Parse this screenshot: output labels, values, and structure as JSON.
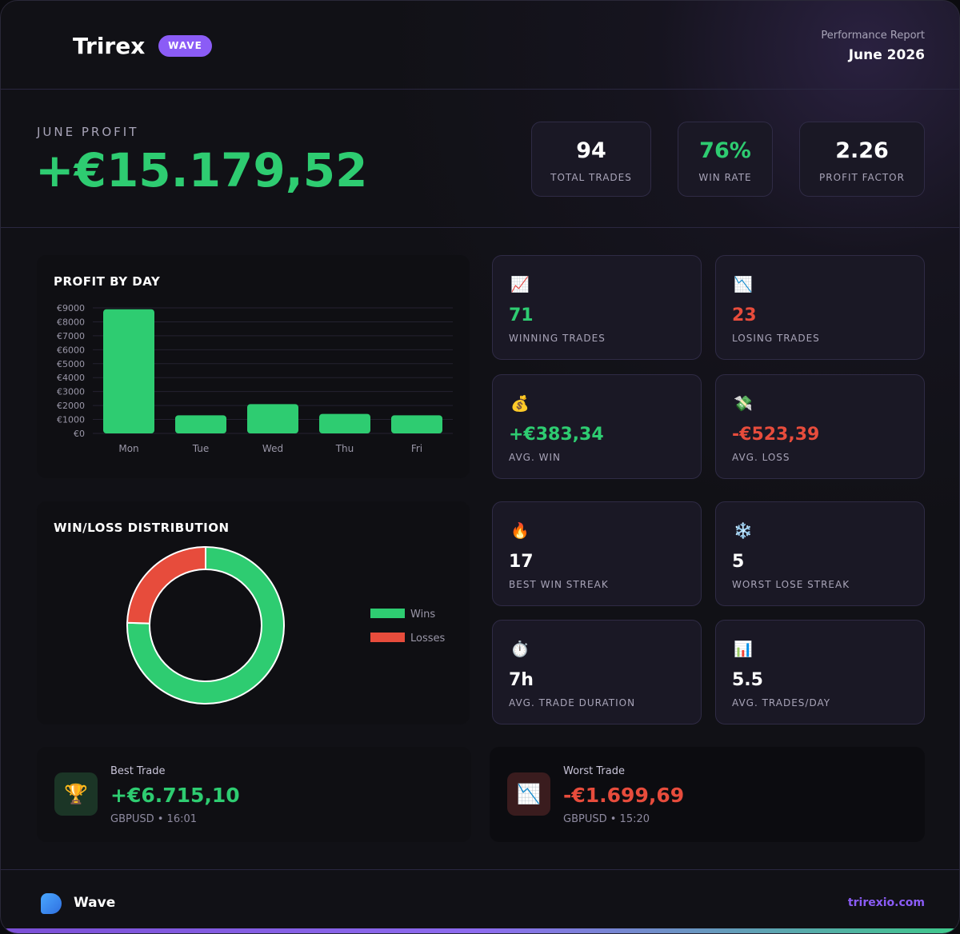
{
  "header": {
    "brand": "Trirex",
    "badge": "WAVE",
    "report_label": "Performance Report",
    "period": "June 2026"
  },
  "summary": {
    "label": "JUNE PROFIT",
    "profit": "+€15.179,52",
    "profit_color": "#2ecc71",
    "stats": [
      {
        "value": "94",
        "label": "TOTAL TRADES",
        "color": "#ffffff"
      },
      {
        "value": "76%",
        "label": "WIN RATE",
        "color": "#2ecc71"
      },
      {
        "value": "2.26",
        "label": "PROFIT FACTOR",
        "color": "#ffffff"
      }
    ]
  },
  "chart_data": [
    {
      "type": "bar",
      "title": "PROFIT BY DAY",
      "categories": [
        "Mon",
        "Tue",
        "Wed",
        "Thu",
        "Fri"
      ],
      "values": [
        8900,
        1300,
        2100,
        1400,
        1300
      ],
      "color": "#2ecc71",
      "ylim": [
        0,
        9000
      ],
      "yticks": [
        {
          "value": 0,
          "label": "€0"
        },
        {
          "value": 1000,
          "label": "€1000"
        },
        {
          "value": 2000,
          "label": "€2000"
        },
        {
          "value": 3000,
          "label": "€3000"
        },
        {
          "value": 4000,
          "label": "€4000"
        },
        {
          "value": 5000,
          "label": "€5000"
        },
        {
          "value": 6000,
          "label": "€6000"
        },
        {
          "value": 7000,
          "label": "€7000"
        },
        {
          "value": 8000,
          "label": "€8000"
        },
        {
          "value": 9000,
          "label": "€9000"
        }
      ],
      "grid": true
    },
    {
      "type": "donut",
      "title": "WIN/LOSS DISTRIBUTION",
      "categories": [
        "Wins",
        "Losses"
      ],
      "values": [
        71,
        23
      ],
      "colors": [
        "#2ecc71",
        "#e74c3c"
      ],
      "legend": "right"
    }
  ],
  "cards": [
    {
      "icon": "📈",
      "value": "71",
      "label": "WINNING TRADES",
      "color": "#2ecc71"
    },
    {
      "icon": "📉",
      "value": "23",
      "label": "LOSING TRADES",
      "color": "#e74c3c"
    },
    {
      "icon": "💰",
      "value": "+€383,34",
      "label": "AVG. WIN",
      "color": "#2ecc71"
    },
    {
      "icon": "💸",
      "value": "-€523,39",
      "label": "AVG. LOSS",
      "color": "#e74c3c"
    },
    {
      "icon": "🔥",
      "value": "17",
      "label": "BEST WIN STREAK",
      "color": "#ffffff"
    },
    {
      "icon": "❄️",
      "value": "5",
      "label": "WORST LOSE STREAK",
      "color": "#ffffff"
    },
    {
      "icon": "⏱️",
      "value": "7h",
      "label": "AVG. TRADE DURATION",
      "color": "#ffffff"
    },
    {
      "icon": "📊",
      "value": "5.5",
      "label": "AVG. TRADES/DAY",
      "color": "#ffffff"
    }
  ],
  "trades": [
    {
      "label": "Best Trade",
      "icon": "🏆",
      "value": "+€6.715,10",
      "detail": "GBPUSD • 16:01",
      "color": "#2ecc71"
    },
    {
      "label": "Worst Trade",
      "icon": "📉",
      "value": "-€1.699,69",
      "detail": "GBPUSD • 15:20",
      "color": "#e74c3c"
    }
  ],
  "footer": {
    "brand": "Wave",
    "url": "trirexio.com"
  }
}
